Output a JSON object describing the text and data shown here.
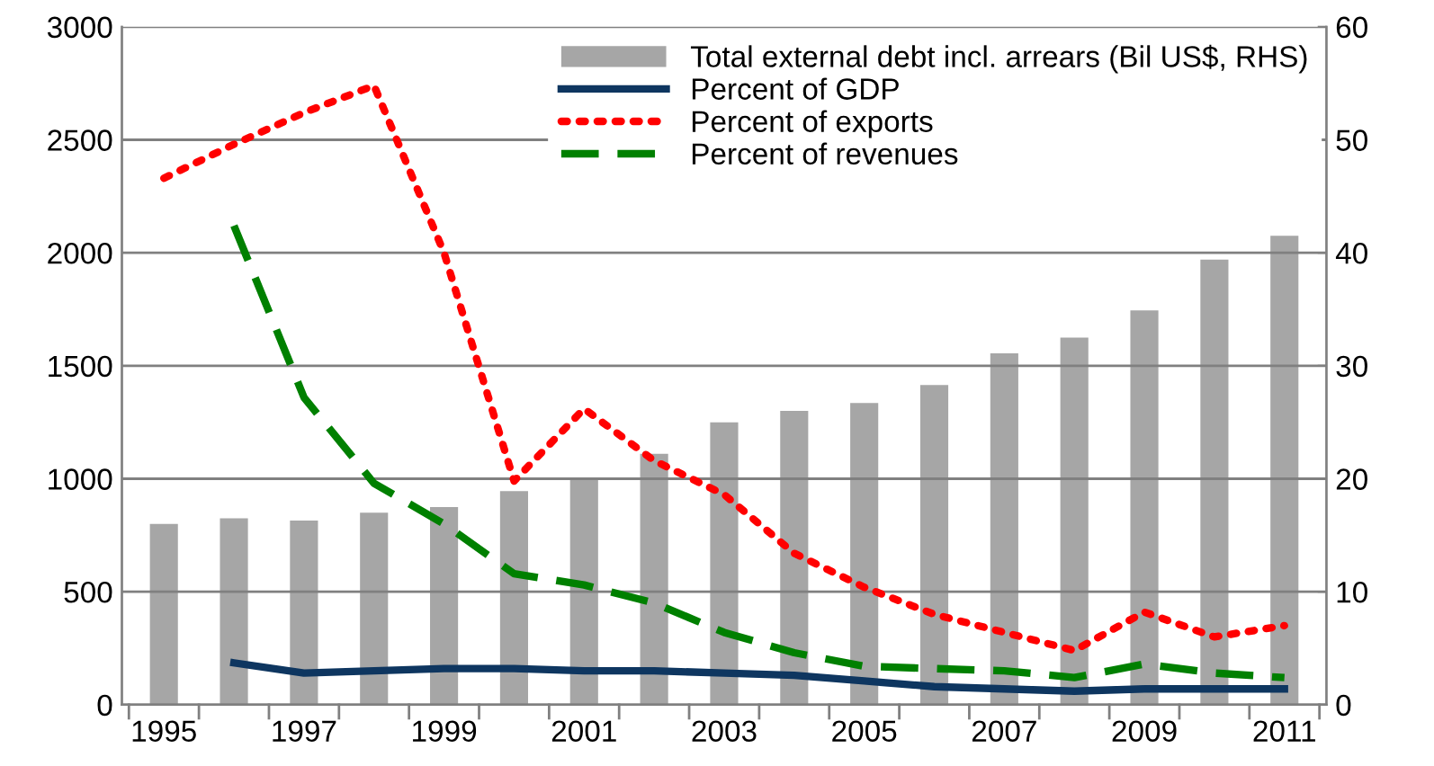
{
  "chart_data": {
    "type": "bar",
    "categories": [
      "1995",
      null,
      "1997",
      null,
      "1999",
      null,
      "2001",
      null,
      "2003",
      null,
      "2005",
      null,
      "2007",
      null,
      "2009",
      null,
      "2011"
    ],
    "series": [
      {
        "name": "Total external debt incl. arrears (Bil US$, RHS)",
        "axis": "y2",
        "color": "#a6a6a6",
        "values": [
          16,
          16.5,
          16.3,
          17,
          17.5,
          18.9,
          20,
          22.2,
          25,
          26,
          26.7,
          28.3,
          31.1,
          32.5,
          34.9,
          39.4,
          41.5
        ]
      },
      {
        "name": "Percent of GDP",
        "type": "line",
        "line_style": "solid",
        "color": "#0e3660",
        "values": [
          null,
          185,
          140,
          150,
          160,
          160,
          150,
          150,
          140,
          130,
          105,
          80,
          70,
          60,
          70,
          70,
          70
        ]
      },
      {
        "name": "Percent of exports",
        "type": "line",
        "line_style": "dotted",
        "color": "#ff0000",
        "values": [
          2330,
          2480,
          2620,
          2740,
          2000,
          990,
          1310,
          1080,
          930,
          670,
          520,
          400,
          320,
          240,
          410,
          300,
          350
        ]
      },
      {
        "name": "Percent of revenues",
        "type": "line",
        "line_style": "dashed",
        "color": "#008000",
        "values": [
          null,
          2120,
          1360,
          980,
          800,
          580,
          530,
          450,
          320,
          230,
          170,
          160,
          150,
          120,
          180,
          140,
          120
        ]
      }
    ],
    "ylim": [
      0,
      3000
    ],
    "yticks": [
      0,
      500,
      1000,
      1500,
      2000,
      2500,
      3000
    ],
    "y2lim": [
      0,
      60
    ],
    "y2ticks": [
      0,
      10,
      20,
      30,
      40,
      50,
      60
    ],
    "grid": "y",
    "legend": "top right",
    "marker": "none"
  }
}
